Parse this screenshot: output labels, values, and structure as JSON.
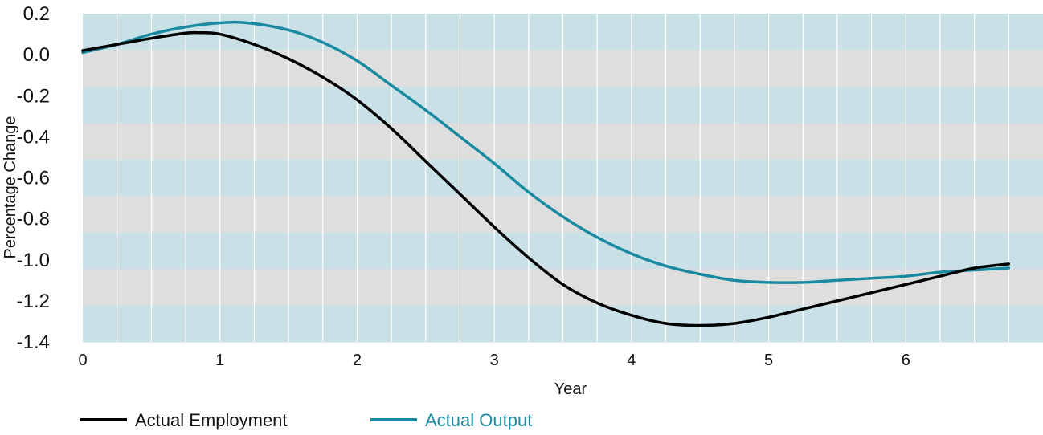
{
  "chart_data": {
    "type": "line",
    "xlabel": "Year",
    "ylabel": "Percentage Change",
    "xlim": [
      0,
      7.0
    ],
    "ylim": [
      -1.4,
      0.2
    ],
    "x_ticks": [
      0,
      1,
      2,
      3,
      4,
      5,
      6
    ],
    "x_tick_labels": [
      "0",
      "1",
      "2",
      "3",
      "4",
      "5",
      "6"
    ],
    "y_ticks": [
      0.2,
      0.0,
      -0.2,
      -0.4,
      -0.6,
      -0.8,
      -1.0,
      -1.2,
      -1.4
    ],
    "y_tick_labels": [
      "0.2",
      "0.0",
      "-0.2",
      "-0.4",
      "-0.6",
      "-0.8",
      "-1.0",
      "-1.2",
      "-1.4"
    ],
    "background": "horizontal bands alternating light blue and light gray, vertical white gridlines at quarter-year intervals",
    "band_colors": [
      "#c9e0e7",
      "#dedede"
    ],
    "legend_position": "bottom-left",
    "series": [
      {
        "name": "Actual Employment",
        "color": "#000000",
        "x": [
          0,
          0.25,
          0.5,
          0.75,
          0.85,
          1.0,
          1.25,
          1.5,
          1.75,
          2.0,
          2.25,
          2.5,
          2.75,
          3.0,
          3.25,
          3.5,
          3.75,
          4.0,
          4.25,
          4.5,
          4.75,
          5.0,
          5.25,
          5.5,
          5.75,
          6.0,
          6.25,
          6.5,
          6.75
        ],
        "y": [
          0.02,
          0.05,
          0.08,
          0.105,
          0.107,
          0.1,
          0.05,
          -0.02,
          -0.11,
          -0.22,
          -0.36,
          -0.52,
          -0.68,
          -0.84,
          -0.99,
          -1.12,
          -1.21,
          -1.27,
          -1.31,
          -1.32,
          -1.31,
          -1.28,
          -1.24,
          -1.2,
          -1.16,
          -1.12,
          -1.08,
          -1.04,
          -1.02
        ]
      },
      {
        "name": "Actual Output",
        "color": "#1a8aa0",
        "x": [
          0,
          0.25,
          0.5,
          0.75,
          1.0,
          1.2,
          1.5,
          1.75,
          2.0,
          2.25,
          2.5,
          2.75,
          3.0,
          3.25,
          3.5,
          3.75,
          4.0,
          4.25,
          4.5,
          4.75,
          5.0,
          5.25,
          5.5,
          5.75,
          6.0,
          6.25,
          6.5,
          6.75
        ],
        "y": [
          0.01,
          0.05,
          0.1,
          0.135,
          0.155,
          0.155,
          0.12,
          0.06,
          -0.03,
          -0.15,
          -0.27,
          -0.4,
          -0.53,
          -0.67,
          -0.79,
          -0.89,
          -0.97,
          -1.03,
          -1.07,
          -1.1,
          -1.11,
          -1.11,
          -1.1,
          -1.09,
          -1.08,
          -1.06,
          -1.05,
          -1.04
        ]
      }
    ]
  }
}
